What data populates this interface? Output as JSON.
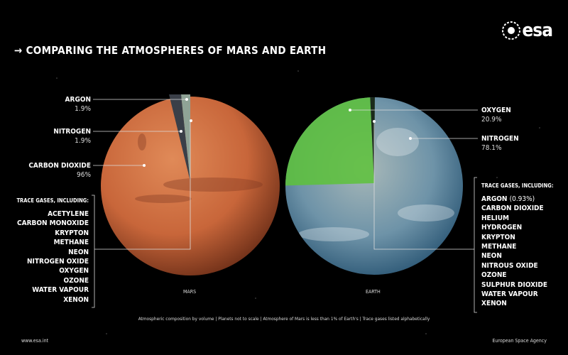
{
  "title": "→ COMPARING THE ATMOSPHERES OF MARS AND EARTH",
  "logo": "esa",
  "mars": {
    "name": "MARS",
    "gases": [
      {
        "label": "ARGON",
        "value": "1.9%"
      },
      {
        "label": "NITROGEN",
        "value": "1.9%"
      },
      {
        "label": "CARBON DIOXIDE",
        "value": "96%"
      }
    ],
    "trace_heading": "TRACE GASES, INCLUDING:",
    "trace": [
      "ACETYLENE",
      "CARBON MONOXIDE",
      "KRYPTON",
      "METHANE",
      "NEON",
      "NITROGEN OXIDE",
      "OXYGEN",
      "OZONE",
      "WATER VAPOUR",
      "XENON"
    ],
    "colors": {
      "planet": "#c8663a",
      "argon": "#8fa396",
      "nitrogen": "#3a3f48"
    }
  },
  "earth": {
    "name": "EARTH",
    "gases": [
      {
        "label": "OXYGEN",
        "value": "20.9%"
      },
      {
        "label": "NITROGEN",
        "value": "78.1%"
      }
    ],
    "trace_heading": "TRACE GASES, INCLUDING:",
    "trace_first": {
      "label": "ARGON",
      "value": "(0.93%)"
    },
    "trace": [
      "CARBON DIOXIDE",
      "HELIUM",
      "HYDROGEN",
      "KRYPTON",
      "METHANE",
      "NEON",
      "NITROUS OXIDE",
      "OZONE",
      "SULPHUR DIOXIDE",
      "WATER VAPOUR",
      "XENON"
    ],
    "colors": {
      "planet": "#4f86a8",
      "oxygen": "#5dc23a"
    }
  },
  "footnote": "Atmospheric composition by volume | Planets not to scale | Atmosphere of Mars is less than 1% of Earth's | Trace gases listed alphabetically",
  "website": "www.esa.int",
  "agency": "European Space Agency"
}
